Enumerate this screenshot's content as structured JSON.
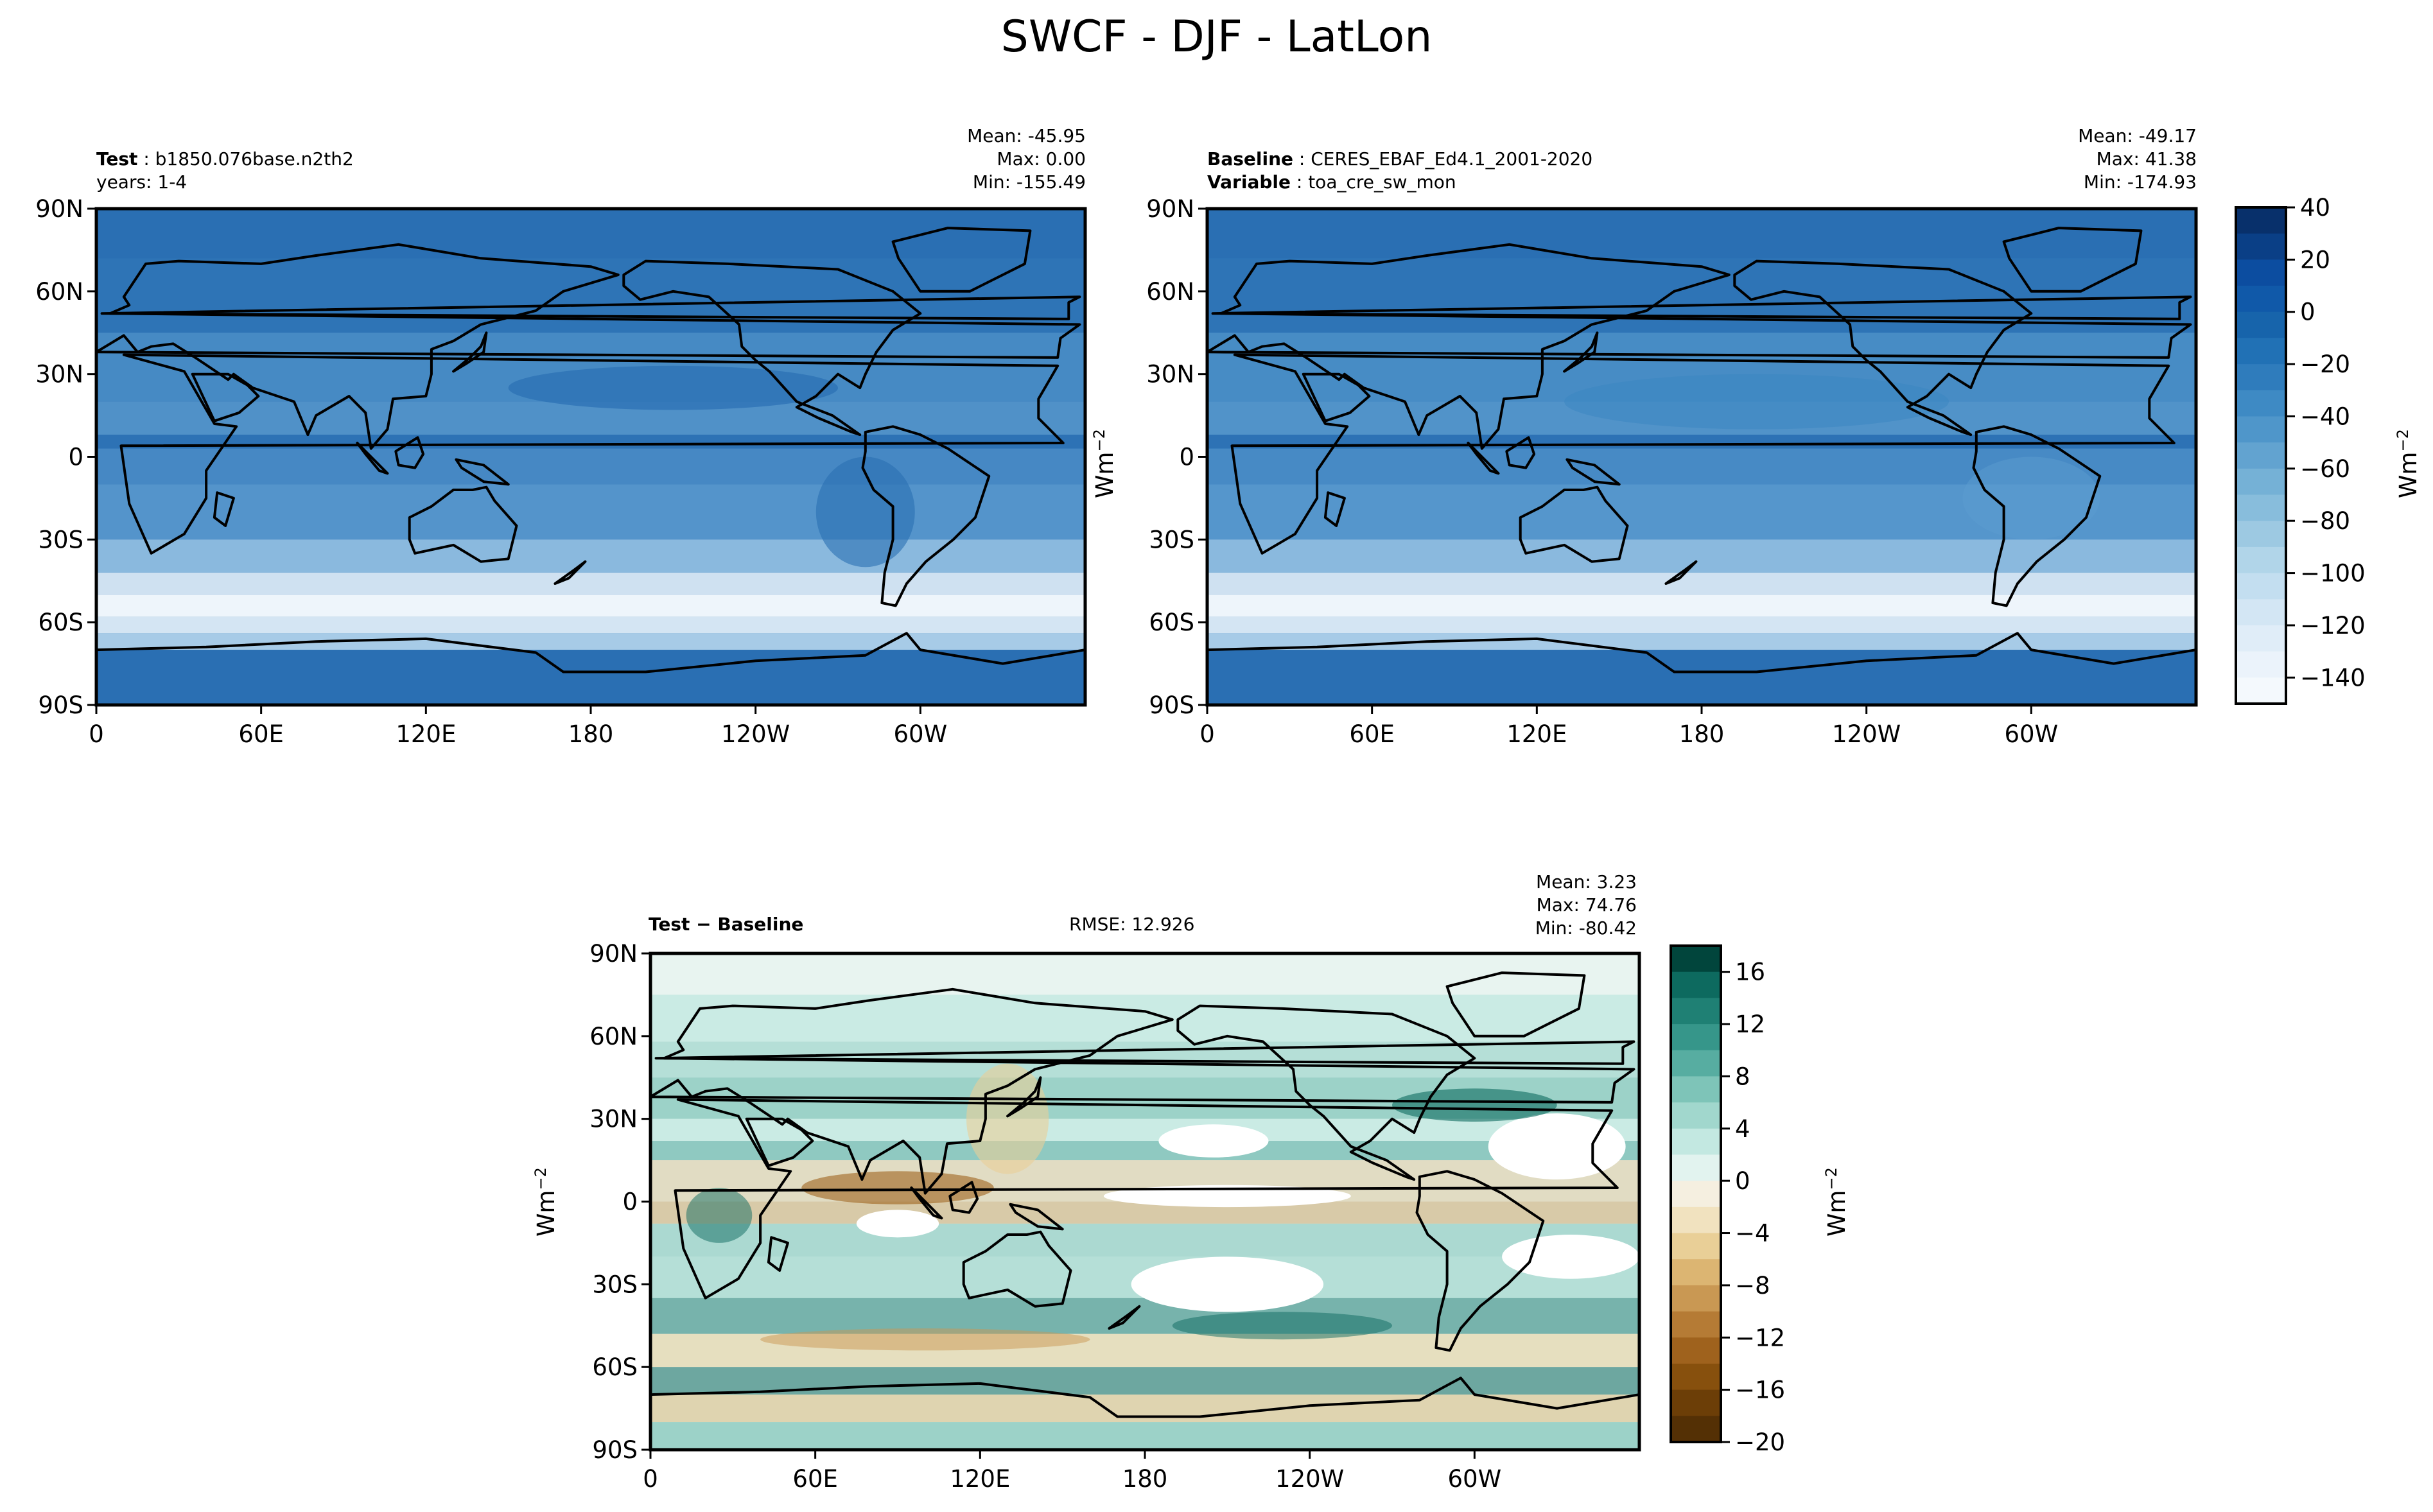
{
  "title": "SWCF - DJF - LatLon",
  "x_ticks": [
    "0",
    "60E",
    "120E",
    "180",
    "120W",
    "60W"
  ],
  "y_ticks": [
    "90N",
    "60N",
    "30N",
    "0",
    "30S",
    "60S",
    "90S"
  ],
  "units": "Wm",
  "units_exp": "−2",
  "test_panel": {
    "name_label": "Test",
    "name_value": "b1850.076base.n2th2",
    "years": "years: 1-4",
    "mean": "Mean: -45.95",
    "max": "Max:  0.00",
    "min": "Min: -155.49"
  },
  "baseline_panel": {
    "name_label": "Baseline",
    "name_value": "CERES_EBAF_Ed4.1_2001-2020",
    "var_label": "Variable",
    "var_value": "toa_cre_sw_mon",
    "mean": "Mean: -49.17",
    "max": "Max: 41.38",
    "min": "Min: -174.93"
  },
  "diff_panel": {
    "label": "Test − Baseline",
    "rmse": "RMSE: 12.926",
    "mean": "Mean:  3.23",
    "max": "Max: 74.76",
    "min": "Min: -80.42"
  },
  "colorbar_top": {
    "ticks": [
      "40",
      "20",
      "0",
      "−20",
      "−40",
      "−60",
      "−80",
      "−100",
      "−120",
      "−140"
    ],
    "levels": [
      40,
      30,
      20,
      10,
      0,
      -10,
      -20,
      -30,
      -40,
      -50,
      -60,
      -70,
      -80,
      -90,
      -100,
      -110,
      -120,
      -130,
      -140,
      -150
    ],
    "colors": [
      "#08306b",
      "#0a3f86",
      "#0c4da0",
      "#1059a9",
      "#1764ab",
      "#2171b5",
      "#2f7cbc",
      "#3e8ac4",
      "#4f96ca",
      "#62a3d0",
      "#75b1d6",
      "#88bddc",
      "#9dc9e2",
      "#b1d5e9",
      "#c3def0",
      "#d3e6f4",
      "#e0edf8",
      "#ebf3fb",
      "#f4f9fd"
    ],
    "range": [
      -150,
      40
    ]
  },
  "colorbar_diff": {
    "ticks": [
      "16",
      "12",
      "8",
      "4",
      "0",
      "−4",
      "−8",
      "−12",
      "−16",
      "−20"
    ],
    "levels": [
      18,
      16,
      14,
      12,
      10,
      8,
      6,
      4,
      2,
      0,
      -2,
      -4,
      -6,
      -8,
      -10,
      -12,
      -14,
      -16,
      -18,
      -20
    ],
    "colors": [
      "#01453c",
      "#0d6a5f",
      "#1f8074",
      "#36968a",
      "#57ada1",
      "#7ec4b8",
      "#a1d7cd",
      "#c3e8e1",
      "#e2f3ef",
      "#f5efe0",
      "#f1e2bf",
      "#e9cf97",
      "#dcb572",
      "#c99853",
      "#b57b35",
      "#9f621d",
      "#87500d",
      "#6c3e07",
      "#543005"
    ],
    "range": [
      -20,
      18
    ]
  },
  "colors": {
    "test_ocean": "#2a6fb3",
    "baseline_ocean": "#2f78ba",
    "diff_background": "#e3f2ef"
  }
}
